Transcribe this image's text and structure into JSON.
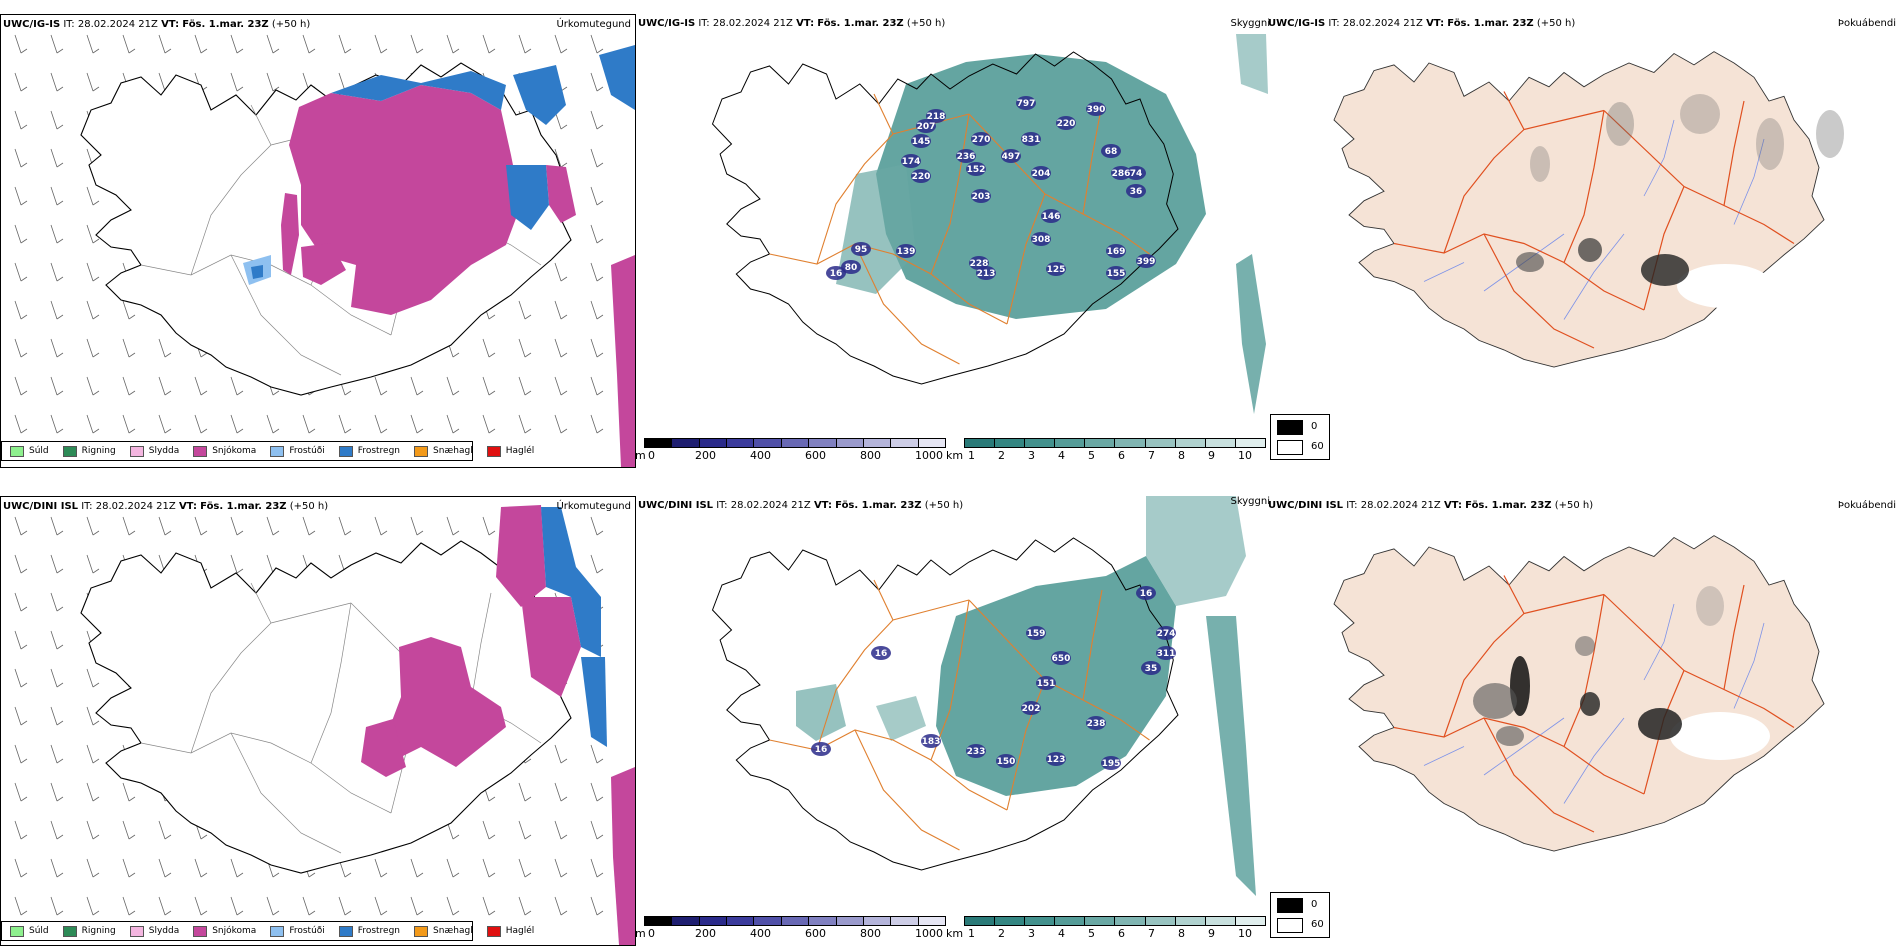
{
  "rows": [
    {
      "model": "UWC/IG-IS",
      "it_label": "IT:",
      "it_value": "28.02.2024 21Z",
      "vt_label": "VT:",
      "vt_value": "Fös. 1.mar. 23Z",
      "lead": "(+50 h)"
    },
    {
      "model": "UWC/DINI ISL",
      "it_label": "IT:",
      "it_value": "28.02.2024 21Z",
      "vt_label": "VT:",
      "vt_value": "Fös. 1.mar. 23Z",
      "lead": "(+50 h)"
    }
  ],
  "panel_titles": {
    "precip": "Úrkomutegund",
    "visibility": "Skyggni",
    "fog": "Þokuábendi"
  },
  "precip_legend": [
    {
      "label": "Súld",
      "color": "#8ef08e"
    },
    {
      "label": "Rigning",
      "color": "#2e8b57"
    },
    {
      "label": "Slydda",
      "color": "#f4b6e0"
    },
    {
      "label": "Snjókoma",
      "color": "#c4479c"
    },
    {
      "label": "Frostúði",
      "color": "#8ec0f0"
    },
    {
      "label": "Frostregn",
      "color": "#2f7bc8"
    },
    {
      "label": "Snæhagl",
      "color": "#f39a1a"
    },
    {
      "label": "Haglél",
      "color": "#e01010"
    }
  ],
  "cloud_base_bar": {
    "unit": "m",
    "ticks": [
      "0",
      "200",
      "400",
      "600",
      "800",
      "1000"
    ],
    "colors": [
      "#000000",
      "#1e1e70",
      "#2a2a8a",
      "#3b3b9c",
      "#5050a8",
      "#6868b4",
      "#8080c0",
      "#9a9acc",
      "#b4b4da",
      "#cdcde6",
      "#e6e6f4"
    ]
  },
  "visibility_bar": {
    "unit": "km",
    "ticks": [
      "1",
      "2",
      "3",
      "4",
      "5",
      "6",
      "7",
      "8",
      "9",
      "10"
    ],
    "colors": [
      "#2a7a78",
      "#348682",
      "#43918d",
      "#559c98",
      "#6aa8a4",
      "#80b5b2",
      "#98c3c0",
      "#b0d2cf",
      "#c8e0de",
      "#e0eeed"
    ]
  },
  "fog_legend": [
    {
      "value": "0",
      "color": "#000000"
    },
    {
      "value": "60",
      "color": "#ffffff"
    }
  ],
  "cloud_base_labels_top": [
    "218",
    "797",
    "390",
    "207",
    "270",
    "220",
    "145",
    "831",
    "174",
    "236",
    "497",
    "68",
    "74",
    "220",
    "152",
    "204",
    "286",
    "36",
    "203",
    "146",
    "308",
    "95",
    "139",
    "169",
    "80",
    "228",
    "399",
    "16",
    "213",
    "125",
    "155"
  ],
  "cloud_base_labels_bottom": [
    "16",
    "274",
    "311",
    "35",
    "159",
    "650",
    "16",
    "151",
    "202",
    "238",
    "183",
    "233",
    "150",
    "123",
    "195",
    "16"
  ]
}
